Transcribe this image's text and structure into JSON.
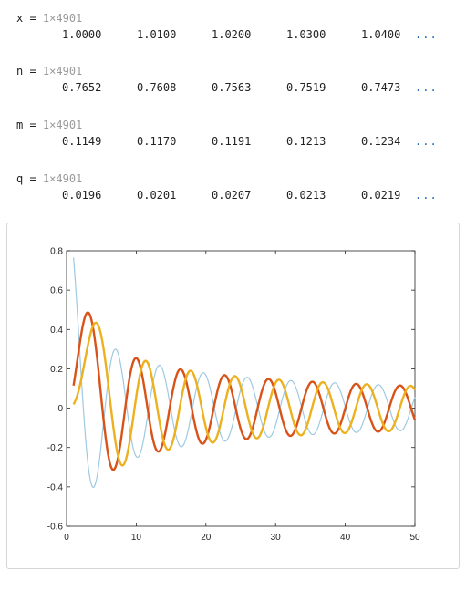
{
  "variables": [
    {
      "name": "x",
      "size": "1×4901",
      "values": [
        "1.0000",
        "1.0100",
        "1.0200",
        "1.0300",
        "1.0400"
      ]
    },
    {
      "name": "n",
      "size": "1×4901",
      "values": [
        "0.7652",
        "0.7608",
        "0.7563",
        "0.7519",
        "0.7473"
      ]
    },
    {
      "name": "m",
      "size": "1×4901",
      "values": [
        "0.1149",
        "0.1170",
        "0.1191",
        "0.1213",
        "0.1234"
      ]
    },
    {
      "name": "q",
      "size": "1×4901",
      "values": [
        "0.0196",
        "0.0201",
        "0.0207",
        "0.0213",
        "0.0219"
      ]
    }
  ],
  "ellipsis": "...",
  "chart_data": {
    "type": "line",
    "title": "",
    "xlabel": "",
    "ylabel": "",
    "xlim": [
      0,
      50
    ],
    "ylim": [
      -0.6,
      0.8
    ],
    "xticks": [
      "0",
      "10",
      "20",
      "30",
      "40",
      "50"
    ],
    "yticks": [
      "-0.6",
      "-0.4",
      "-0.2",
      "0",
      "0.2",
      "0.4",
      "0.6",
      "0.8"
    ],
    "grid": false,
    "x_range": [
      1,
      50
    ],
    "series": [
      {
        "var": "n",
        "color": "#9ec9e2",
        "function": "besselj0",
        "sample_x": [
          1,
          3.8,
          7,
          10.2,
          13.3
        ],
        "sample_y": [
          0.7652,
          -0.4028,
          0.3001,
          -0.2497,
          0.2184
        ]
      },
      {
        "var": "m",
        "color": "#d95319",
        "function": "besselj2",
        "sample_x": [
          1,
          3.05,
          6.7,
          9.97,
          13.2
        ],
        "sample_y": [
          0.1149,
          0.4865,
          -0.3135,
          0.2547,
          -0.2194
        ]
      },
      {
        "var": "q",
        "color": "#edb120",
        "function": "besselj3",
        "sample_x": [
          1,
          4.2,
          8.0,
          11.35,
          14.6
        ],
        "sample_y": [
          0.0196,
          0.4344,
          -0.2911,
          0.2391,
          -0.2081
        ]
      }
    ]
  }
}
